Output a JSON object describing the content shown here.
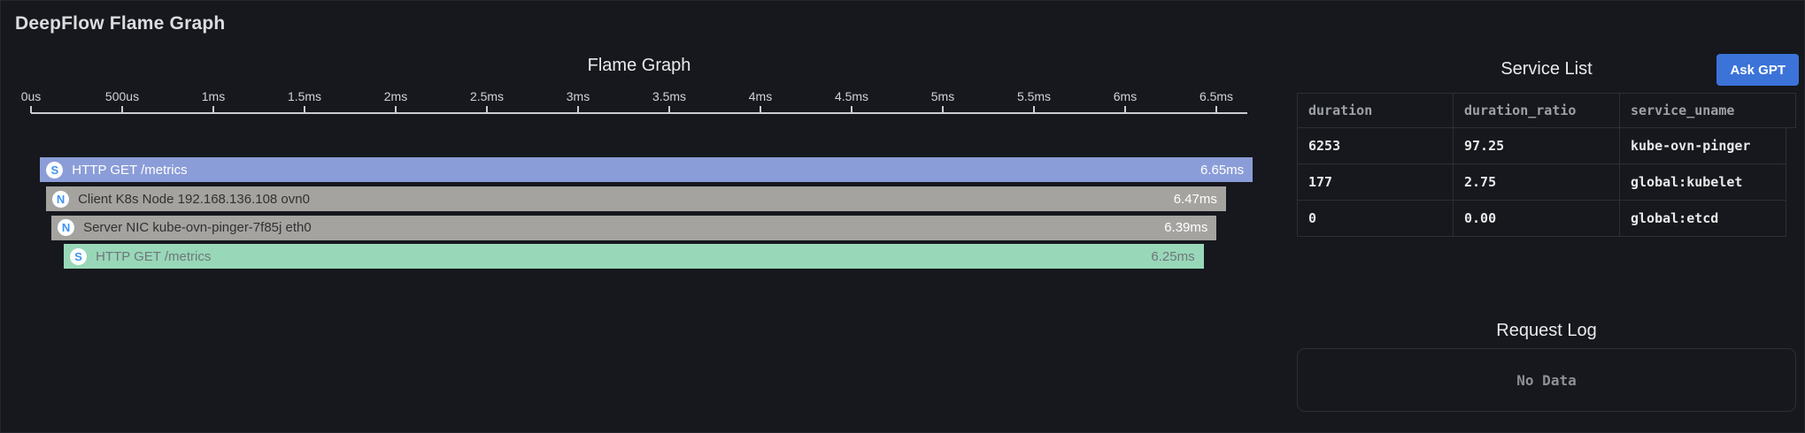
{
  "panel": {
    "title": "DeepFlow Flame Graph"
  },
  "chart_data": {
    "type": "flame",
    "title": "Flame Graph",
    "x_unit": "ms",
    "xlim": [
      0,
      6.65
    ],
    "ticks": [
      {
        "ms": 0,
        "label": "0us"
      },
      {
        "ms": 0.5,
        "label": "500us"
      },
      {
        "ms": 1,
        "label": "1ms"
      },
      {
        "ms": 1.5,
        "label": "1.5ms"
      },
      {
        "ms": 2,
        "label": "2ms"
      },
      {
        "ms": 2.5,
        "label": "2.5ms"
      },
      {
        "ms": 3,
        "label": "3ms"
      },
      {
        "ms": 3.5,
        "label": "3.5ms"
      },
      {
        "ms": 4,
        "label": "4ms"
      },
      {
        "ms": 4.5,
        "label": "4.5ms"
      },
      {
        "ms": 5,
        "label": "5ms"
      },
      {
        "ms": 5.5,
        "label": "5.5ms"
      },
      {
        "ms": 6,
        "label": "6ms"
      },
      {
        "ms": 6.5,
        "label": "6.5ms"
      }
    ],
    "frames": [
      {
        "icon": "S",
        "name": "HTTP GET /metrics",
        "start_ms": 0.05,
        "duration_ms": 6.65,
        "duration_label": "6.65ms",
        "style": "client",
        "color": "#8B9DD8"
      },
      {
        "icon": "N",
        "name": "Client K8s Node 192.168.136.108 ovn0",
        "start_ms": 0.083,
        "duration_ms": 6.47,
        "duration_label": "6.47ms",
        "style": "network",
        "color": "#A5A3A0"
      },
      {
        "icon": "N",
        "name": "Server NIC kube-ovn-pinger-7f85j eth0",
        "start_ms": 0.112,
        "duration_ms": 6.39,
        "duration_label": "6.39ms",
        "style": "network",
        "color": "#A5A3A0"
      },
      {
        "icon": "S",
        "name": "HTTP GET /metrics",
        "start_ms": 0.18,
        "duration_ms": 6.25,
        "duration_label": "6.25ms",
        "style": "server",
        "color": "#98D8B8"
      }
    ]
  },
  "service_list": {
    "title": "Service List",
    "ask_gpt_label": "Ask GPT",
    "columns": [
      "duration",
      "duration_ratio",
      "service_uname"
    ],
    "rows": [
      [
        "6253",
        "97.25",
        "kube-ovn-pinger"
      ],
      [
        "177",
        "2.75",
        "global:kubelet"
      ],
      [
        "0",
        "0.00",
        "global:etcd"
      ]
    ]
  },
  "request_log": {
    "title": "Request Log",
    "empty_text": "No Data"
  },
  "colors": {
    "background": "#16181D",
    "accent_button": "#3B73D9",
    "bar_client": "#8B9DD8",
    "bar_network": "#A5A3A0",
    "bar_server": "#98D8B8",
    "badge_letter": "#3E93F2",
    "axis": "#C9CCD1",
    "table_border": "#2C2F35"
  }
}
